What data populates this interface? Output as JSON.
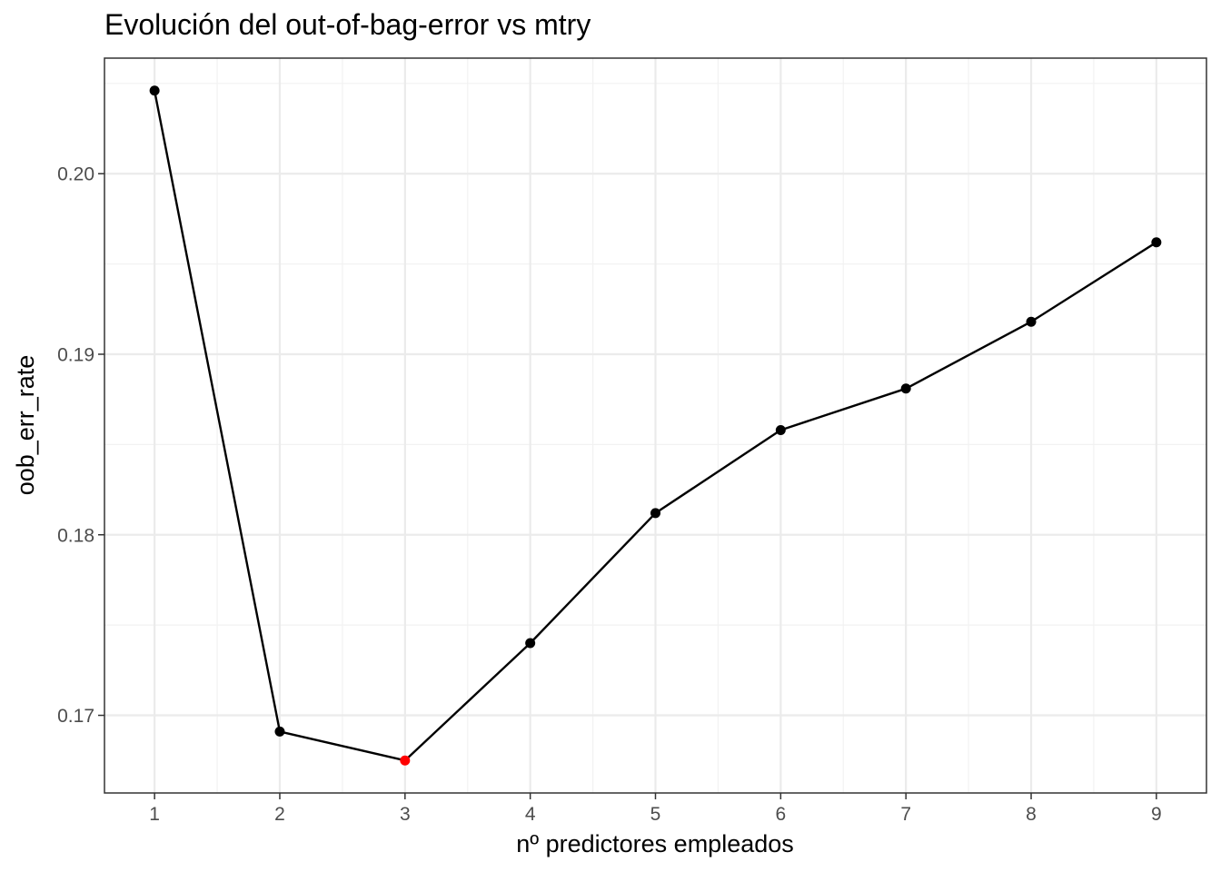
{
  "chart_data": {
    "type": "line",
    "title": "Evolución del out-of-bag-error vs mtry",
    "xlabel": "nº predictores empleados",
    "ylabel": "oob_err_rate",
    "x": [
      1,
      2,
      3,
      4,
      5,
      6,
      7,
      8,
      9
    ],
    "y": [
      0.2046,
      0.1691,
      0.1675,
      0.174,
      0.1812,
      0.1858,
      0.1881,
      0.1918,
      0.1962
    ],
    "highlight_index": 2,
    "xlim": [
      0.6,
      9.4
    ],
    "ylim": [
      0.1657,
      0.2064
    ],
    "x_ticks": [
      "1",
      "2",
      "3",
      "4",
      "5",
      "6",
      "7",
      "8",
      "9"
    ],
    "y_ticks": [
      "0.17",
      "0.18",
      "0.19",
      "0.20"
    ],
    "y_tick_values": [
      0.17,
      0.18,
      0.19,
      0.2
    ],
    "grid": true,
    "colors": {
      "line": "#000000",
      "point": "#000000",
      "highlight": "#ff0000",
      "grid_major": "#ebebeb",
      "grid_minor": "#f2f2f2",
      "panel_border": "#333333"
    }
  }
}
